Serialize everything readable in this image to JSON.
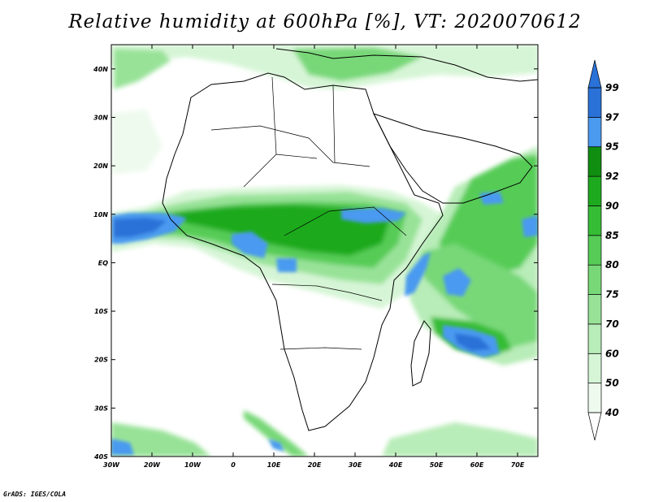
{
  "title": "Relative humidity at 600hPa [%], VT: 2020070612",
  "credit": "GrADS: IGES/COLA",
  "map": {
    "lon_range": [
      -30,
      75
    ],
    "lat_range": [
      -40,
      45
    ],
    "x_ticks": [
      "30W",
      "20W",
      "10W",
      "0",
      "10E",
      "20E",
      "30E",
      "40E",
      "50E",
      "60E",
      "70E"
    ],
    "y_ticks": [
      "40S",
      "30S",
      "20S",
      "10S",
      "EQ",
      "10N",
      "20N",
      "30N",
      "40N"
    ]
  },
  "colorbar": {
    "labels": [
      "40",
      "50",
      "60",
      "70",
      "75",
      "80",
      "85",
      "90",
      "92",
      "95",
      "97",
      "99"
    ],
    "colors": [
      "#eefaee",
      "#d6f5d6",
      "#b8ecb8",
      "#98e298",
      "#78d878",
      "#56cc56",
      "#36bd36",
      "#1eaa1e",
      "#108e10",
      "#4a9af0",
      "#2a72d8"
    ]
  }
}
